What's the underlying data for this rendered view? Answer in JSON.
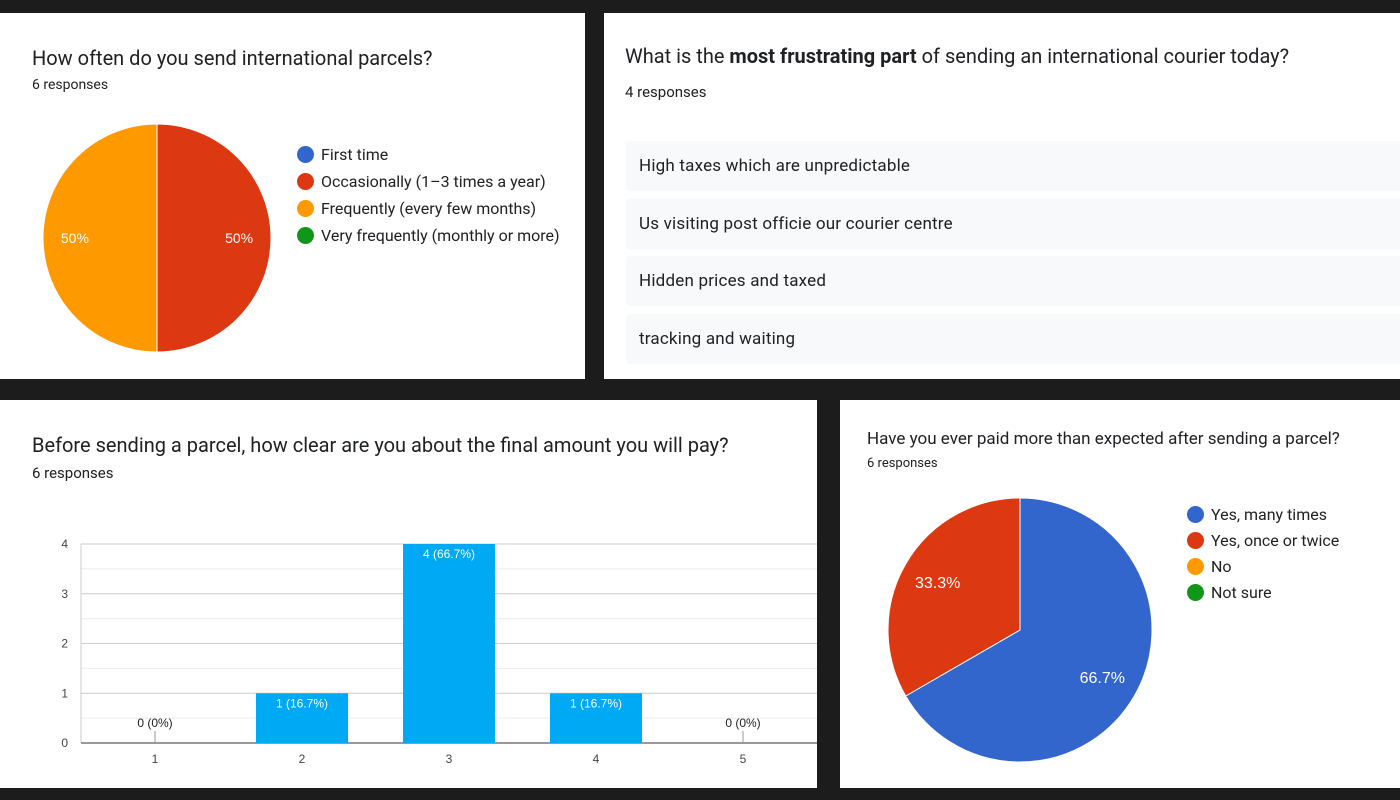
{
  "panel1": {
    "title": "How often do you send international parcels?",
    "count": "6 responses",
    "legend": [
      {
        "label": "First time",
        "color": "#3366cc"
      },
      {
        "label": "Occasionally (1–3 times a year)",
        "color": "#dc3912"
      },
      {
        "label": "Frequently (every few months)",
        "color": "#ff9900"
      },
      {
        "label": "Very frequently (monthly or more)",
        "color": "#109618"
      }
    ]
  },
  "panel2": {
    "title_pre": "What is the ",
    "title_bold": "most frustrating part",
    "title_post": " of sending an international courier today?",
    "count": "4 responses",
    "responses": [
      "High taxes which are unpredictable",
      "Us visiting post officie our courier centre",
      "Hidden prices and taxed",
      "tracking and waiting"
    ]
  },
  "panel3": {
    "title": "Before sending a parcel, how clear are you about the final amount you will pay?",
    "count": "6 responses"
  },
  "panel4": {
    "title": "Have you ever paid more than expected after sending a parcel?",
    "count": "6 responses",
    "legend": [
      {
        "label": "Yes, many times",
        "color": "#3366cc"
      },
      {
        "label": "Yes, once or twice",
        "color": "#dc3912"
      },
      {
        "label": "No",
        "color": "#ff9900"
      },
      {
        "label": "Not sure",
        "color": "#109618"
      }
    ]
  },
  "chart_data": [
    {
      "type": "pie",
      "title": "How often do you send international parcels?",
      "labels": [
        "First time",
        "Occasionally (1–3 times a year)",
        "Frequently (every few months)",
        "Very frequently (monthly or more)"
      ],
      "values": [
        0,
        3,
        3,
        0
      ],
      "percent_labels": [
        "",
        "50%",
        "50%",
        ""
      ],
      "colors": [
        "#3366cc",
        "#dc3912",
        "#ff9900",
        "#109618"
      ],
      "legend": "right"
    },
    {
      "type": "bar",
      "title": "Before sending a parcel, how clear are you about the final amount you will pay?",
      "categories": [
        "1",
        "2",
        "3",
        "4",
        "5"
      ],
      "values": [
        0,
        1,
        4,
        1,
        0
      ],
      "data_labels": [
        "0 (0%)",
        "1 (16.7%)",
        "4 (66.7%)",
        "1 (16.7%)",
        "0 (0%)"
      ],
      "ylim": [
        0,
        4
      ],
      "yticks": [
        "0",
        "1",
        "2",
        "3",
        "4"
      ],
      "color": "#00a9f4",
      "grid": true
    },
    {
      "type": "pie",
      "title": "Have you ever paid more than expected after sending a parcel?",
      "labels": [
        "Yes, many times",
        "Yes, once or twice",
        "No",
        "Not sure"
      ],
      "values": [
        4,
        2,
        0,
        0
      ],
      "percent_labels": [
        "66.7%",
        "33.3%",
        "",
        ""
      ],
      "colors": [
        "#3366cc",
        "#dc3912",
        "#ff9900",
        "#109618"
      ],
      "legend": "right"
    }
  ]
}
